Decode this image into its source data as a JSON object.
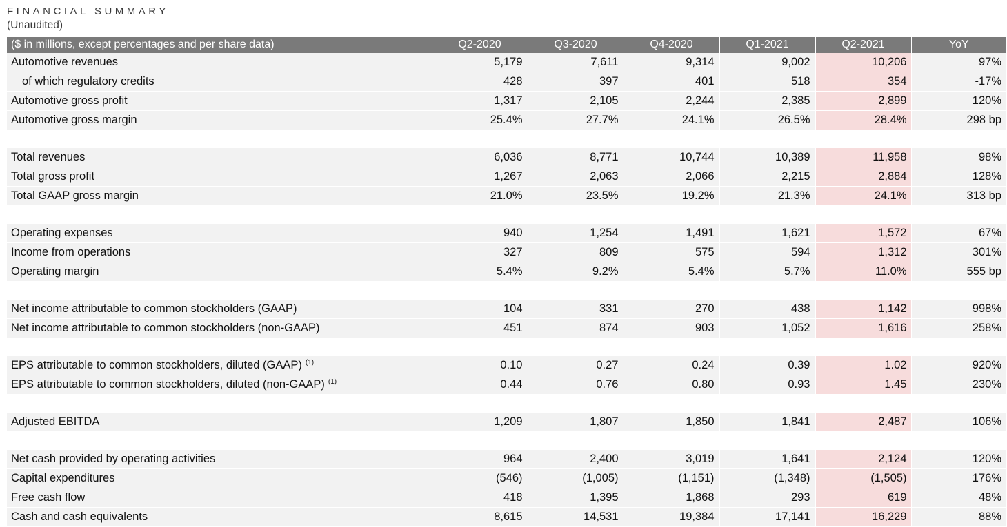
{
  "title": "FINANCIAL SUMMARY",
  "subtitle": "(Unaudited)",
  "header": [
    "($ in millions, except percentages and per share data)",
    "Q2-2020",
    "Q3-2020",
    "Q4-2020",
    "Q1-2021",
    "Q2-2021",
    "YoY"
  ],
  "colors": {
    "header_bg": "#7a7a7a",
    "row_bg": "#f2f2f2",
    "highlight_bg": "#f7dcdc"
  },
  "groups": [
    {
      "rows": [
        {
          "label": "Automotive revenues",
          "values": [
            "5,179",
            "7,611",
            "9,314",
            "9,002",
            "10,206",
            "97%"
          ]
        },
        {
          "label": "of which regulatory credits",
          "indent": true,
          "values": [
            "428",
            "397",
            "401",
            "518",
            "354",
            "-17%"
          ]
        },
        {
          "label": "Automotive gross profit",
          "values": [
            "1,317",
            "2,105",
            "2,244",
            "2,385",
            "2,899",
            "120%"
          ]
        },
        {
          "label": "Automotive gross margin",
          "values": [
            "25.4%",
            "27.7%",
            "24.1%",
            "26.5%",
            "28.4%",
            "298 bp"
          ]
        }
      ]
    },
    {
      "rows": [
        {
          "label": "Total revenues",
          "values": [
            "6,036",
            "8,771",
            "10,744",
            "10,389",
            "11,958",
            "98%"
          ]
        },
        {
          "label": "Total gross profit",
          "values": [
            "1,267",
            "2,063",
            "2,066",
            "2,215",
            "2,884",
            "128%"
          ]
        },
        {
          "label": "Total GAAP gross margin",
          "values": [
            "21.0%",
            "23.5%",
            "19.2%",
            "21.3%",
            "24.1%",
            "313 bp"
          ]
        }
      ]
    },
    {
      "rows": [
        {
          "label": "Operating expenses",
          "values": [
            "940",
            "1,254",
            "1,491",
            "1,621",
            "1,572",
            "67%"
          ]
        },
        {
          "label": "Income from operations",
          "values": [
            "327",
            "809",
            "575",
            "594",
            "1,312",
            "301%"
          ]
        },
        {
          "label": "Operating margin",
          "values": [
            "5.4%",
            "9.2%",
            "5.4%",
            "5.7%",
            "11.0%",
            "555 bp"
          ]
        }
      ]
    },
    {
      "rows": [
        {
          "label": "Net income attributable to common stockholders (GAAP)",
          "values": [
            "104",
            "331",
            "270",
            "438",
            "1,142",
            "998%"
          ]
        },
        {
          "label": "Net income attributable to common stockholders (non-GAAP)",
          "values": [
            "451",
            "874",
            "903",
            "1,052",
            "1,616",
            "258%"
          ]
        }
      ]
    },
    {
      "rows": [
        {
          "label": "EPS attributable to common stockholders, diluted (GAAP)",
          "footnote": "(1)",
          "values": [
            "0.10",
            "0.27",
            "0.24",
            "0.39",
            "1.02",
            "920%"
          ]
        },
        {
          "label": "EPS attributable to common stockholders, diluted (non-GAAP)",
          "footnote": "(1)",
          "values": [
            "0.44",
            "0.76",
            "0.80",
            "0.93",
            "1.45",
            "230%"
          ]
        }
      ]
    },
    {
      "rows": [
        {
          "label": "Adjusted EBITDA",
          "values": [
            "1,209",
            "1,807",
            "1,850",
            "1,841",
            "2,487",
            "106%"
          ]
        }
      ]
    },
    {
      "rows": [
        {
          "label": "Net cash provided by operating activities",
          "values": [
            "964",
            "2,400",
            "3,019",
            "1,641",
            "2,124",
            "120%"
          ]
        },
        {
          "label": "Capital expenditures",
          "values": [
            "(546)",
            "(1,005)",
            "(1,151)",
            "(1,348)",
            "(1,505)",
            "176%"
          ]
        },
        {
          "label": "Free cash flow",
          "values": [
            "418",
            "1,395",
            "1,868",
            "293",
            "619",
            "48%"
          ]
        },
        {
          "label": "Cash and cash equivalents",
          "values": [
            "8,615",
            "14,531",
            "19,384",
            "17,141",
            "16,229",
            "88%"
          ]
        }
      ]
    }
  ]
}
